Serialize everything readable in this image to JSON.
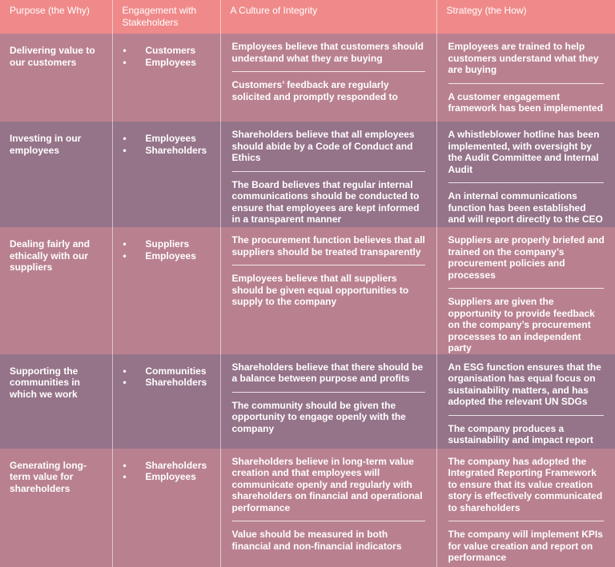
{
  "headers": [
    "Purpose (the Why)",
    "Engagement with Stakeholders",
    "A Culture of Integrity",
    "Strategy (the How)"
  ],
  "rows": [
    {
      "purpose": "Delivering value to our customers",
      "stakeholders": [
        "Customers",
        "Employees"
      ],
      "culture": [
        "Employees believe that customers should understand what they are buying",
        "Customers’ feedback are regularly solicited and promptly responded to"
      ],
      "strategy": [
        "Employees are trained to help customers understand what they are buying",
        "A customer engagement framework has been implemented"
      ]
    },
    {
      "purpose": "Investing in our employees",
      "stakeholders": [
        "Employees",
        "Shareholders"
      ],
      "culture": [
        "Shareholders believe that all employees should abide by a Code of Conduct and Ethics",
        "The Board believes that regular internal communications should be conducted to ensure that employees are kept informed in a transparent manner"
      ],
      "strategy": [
        "A whistleblower hotline has been implemented, with oversight by the Audit Committee and Internal Audit",
        "An internal communications function has been established and will report directly to the CEO"
      ]
    },
    {
      "purpose": "Dealing fairly and ethically with our suppliers",
      "stakeholders": [
        "Suppliers",
        "Employees"
      ],
      "culture": [
        "The procurement function believes that all suppliers should be treated transparently",
        "Employees believe that all suppliers should be given equal opportunities to supply to the company"
      ],
      "strategy": [
        "Suppliers are properly briefed and trained on the company’s procurement policies and processes",
        "Suppliers are given the opportunity to provide feedback on the company’s  procurement processes to an independent party"
      ]
    },
    {
      "purpose": "Supporting the communities in which we work",
      "stakeholders": [
        "Communities",
        "Shareholders"
      ],
      "culture": [
        "Shareholders believe that there should be a balance between purpose and profits",
        "The community should be given the opportunity to engage openly with the company"
      ],
      "strategy": [
        "An ESG function ensures that the organisation has equal focus on sustainability matters, and has adopted the relevant UN SDGs",
        "The company produces a sustainability and impact report"
      ]
    },
    {
      "purpose": "Generating long-term value for shareholders",
      "stakeholders": [
        "Shareholders",
        "Employees"
      ],
      "culture": [
        "Shareholders believe in long-term value creation and that employees will communicate openly and regularly with shareholders on financial and operational performance",
        "Value should be measured in both financial and non-financial indicators"
      ],
      "strategy": [
        "The company has adopted the Integrated Reporting Framework to ensure that its value creation story is effectively communicated to shareholders",
        "The company will implement KPIs for value creation and report on performance"
      ]
    }
  ],
  "colors": {
    "header": "#f08a8a",
    "rose_row": "#b98190",
    "purple_row": "#957389",
    "text": "#ffffff"
  }
}
